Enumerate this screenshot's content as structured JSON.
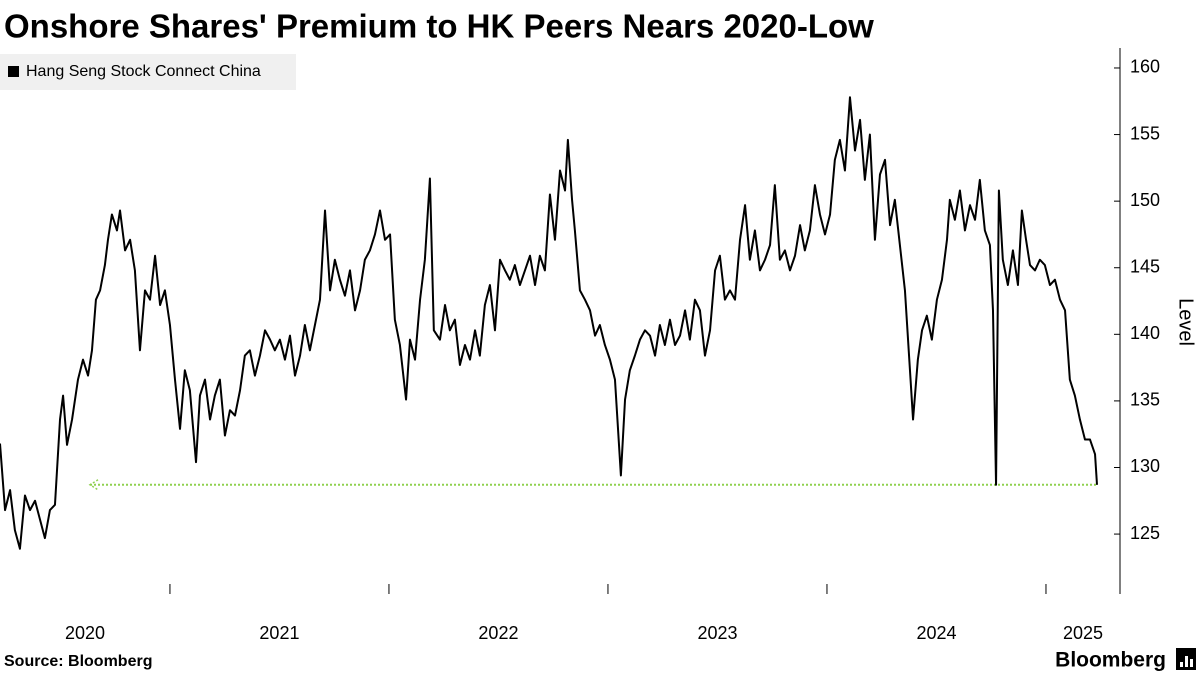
{
  "chart_data": {
    "type": "line",
    "title": "Onshore Shares' Premium to HK Peers Nears 2020-Low",
    "y_axis_label": "Level",
    "source": "Source: Bloomberg",
    "logo": "Bloomberg",
    "legend": "upper left",
    "ylim": [
      120.5,
      161.5
    ],
    "yticks": [
      125,
      130,
      135,
      140,
      145,
      150,
      155,
      160
    ],
    "xlim": [
      2020.224,
      2025.338
    ],
    "xticks": [
      2020,
      2021,
      2022,
      2023,
      2024,
      2025
    ],
    "reference_line": {
      "value": 128.7,
      "from": 2020.635,
      "to": 2025.233,
      "color": "#8fd14f"
    },
    "series": [
      {
        "name": "Hang Seng Stock Connect China",
        "color": "#000000",
        "x": [
          2020.224,
          2020.247,
          2020.27,
          2020.292,
          2020.315,
          2020.338,
          2020.361,
          2020.384,
          2020.429,
          2020.452,
          2020.475,
          2020.498,
          2020.512,
          2020.53,
          2020.553,
          2020.58,
          2020.603,
          2020.626,
          2020.644,
          2020.662,
          2020.681,
          2020.703,
          2020.717,
          2020.735,
          2020.758,
          2020.772,
          2020.795,
          2020.818,
          2020.84,
          2020.863,
          2020.886,
          2020.909,
          2020.932,
          2020.955,
          2020.977,
          2021.0,
          2021.023,
          2021.046,
          2021.068,
          2021.091,
          2021.119,
          2021.137,
          2021.16,
          2021.183,
          2021.205,
          2021.228,
          2021.251,
          2021.274,
          2021.297,
          2021.32,
          2021.342,
          2021.365,
          2021.388,
          2021.411,
          2021.434,
          2021.457,
          2021.479,
          2021.502,
          2021.525,
          2021.548,
          2021.571,
          2021.594,
          2021.616,
          2021.639,
          2021.662,
          2021.685,
          2021.708,
          2021.731,
          2021.753,
          2021.776,
          2021.799,
          2021.822,
          2021.845,
          2021.868,
          2021.89,
          2021.913,
          2021.936,
          2021.959,
          2021.982,
          2022.005,
          2022.027,
          2022.05,
          2022.078,
          2022.096,
          2022.119,
          2022.142,
          2022.164,
          2022.187,
          2022.205,
          2022.233,
          2022.256,
          2022.278,
          2022.301,
          2022.324,
          2022.347,
          2022.37,
          2022.393,
          2022.415,
          2022.438,
          2022.461,
          2022.484,
          2022.507,
          2022.53,
          2022.552,
          2022.575,
          2022.598,
          2022.621,
          2022.644,
          2022.667,
          2022.689,
          2022.712,
          2022.735,
          2022.758,
          2022.781,
          2022.804,
          2022.817,
          2022.836,
          2022.849,
          2022.872,
          2022.895,
          2022.918,
          2022.941,
          2022.963,
          2022.986,
          2023.009,
          2023.032,
          2023.059,
          2023.078,
          2023.1,
          2023.123,
          2023.146,
          2023.169,
          2023.192,
          2023.215,
          2023.237,
          2023.26,
          2023.283,
          2023.306,
          2023.329,
          2023.352,
          2023.374,
          2023.397,
          2023.42,
          2023.443,
          2023.466,
          2023.489,
          2023.511,
          2023.534,
          2023.557,
          2023.58,
          2023.603,
          2023.626,
          2023.648,
          2023.671,
          2023.694,
          2023.717,
          2023.74,
          2023.762,
          2023.785,
          2023.808,
          2023.831,
          2023.854,
          2023.877,
          2023.899,
          2023.922,
          2023.945,
          2023.968,
          2023.991,
          2024.014,
          2024.036,
          2024.059,
          2024.082,
          2024.105,
          2024.128,
          2024.151,
          2024.173,
          2024.196,
          2024.219,
          2024.242,
          2024.265,
          2024.288,
          2024.31,
          2024.333,
          2024.356,
          2024.379,
          2024.393,
          2024.415,
          2024.434,
          2024.456,
          2024.479,
          2024.502,
          2024.525,
          2024.548,
          2024.561,
          2024.584,
          2024.607,
          2024.63,
          2024.653,
          2024.676,
          2024.698,
          2024.721,
          2024.744,
          2024.758,
          2024.772,
          2024.785,
          2024.803,
          2024.826,
          2024.849,
          2024.872,
          2024.89,
          2024.909,
          2024.927,
          2024.95,
          2024.972,
          2024.995,
          2025.018,
          2025.041,
          2025.064,
          2025.087,
          2025.109,
          2025.132,
          2025.155,
          2025.178,
          2025.201,
          2025.224,
          2025.233
        ],
        "values": [
          131.8,
          126.8,
          128.3,
          125.3,
          123.9,
          127.9,
          126.8,
          127.5,
          124.7,
          126.8,
          127.2,
          133.6,
          135.4,
          131.7,
          133.6,
          136.6,
          138.1,
          136.9,
          138.8,
          142.6,
          143.3,
          145.2,
          147.1,
          149.0,
          147.8,
          149.3,
          146.3,
          147.1,
          144.8,
          138.8,
          143.3,
          142.6,
          145.9,
          142.2,
          143.3,
          140.7,
          136.6,
          132.9,
          137.3,
          135.8,
          130.4,
          135.4,
          136.6,
          133.6,
          135.4,
          136.6,
          132.4,
          134.3,
          133.9,
          135.8,
          138.4,
          138.8,
          136.9,
          138.4,
          140.3,
          139.6,
          138.8,
          139.6,
          138.1,
          139.9,
          136.9,
          138.4,
          140.7,
          138.8,
          140.7,
          142.6,
          149.3,
          143.3,
          145.6,
          144.1,
          142.9,
          144.8,
          141.8,
          143.3,
          145.6,
          146.3,
          147.5,
          149.3,
          147.1,
          147.5,
          141.1,
          139.2,
          135.1,
          139.6,
          138.1,
          142.6,
          145.6,
          151.7,
          140.3,
          139.6,
          142.2,
          140.3,
          141.1,
          137.7,
          139.2,
          138.1,
          140.3,
          138.4,
          142.2,
          143.7,
          140.3,
          145.6,
          144.8,
          144.1,
          145.2,
          143.7,
          144.8,
          145.9,
          143.7,
          145.9,
          144.8,
          150.5,
          147.1,
          152.3,
          150.8,
          154.6,
          150.1,
          147.8,
          143.3,
          142.6,
          141.8,
          139.9,
          140.7,
          139.2,
          138.1,
          136.6,
          129.4,
          135.1,
          137.3,
          138.4,
          139.6,
          140.3,
          139.9,
          138.4,
          140.7,
          139.2,
          141.1,
          139.2,
          139.9,
          141.8,
          139.6,
          142.6,
          141.8,
          138.4,
          140.3,
          144.8,
          145.9,
          142.6,
          143.3,
          142.6,
          147.1,
          149.7,
          145.6,
          147.8,
          144.8,
          145.6,
          146.7,
          151.2,
          145.6,
          146.3,
          144.8,
          145.9,
          148.2,
          146.3,
          147.8,
          151.2,
          149.0,
          147.5,
          149.0,
          153.1,
          154.6,
          152.3,
          157.8,
          153.8,
          156.1,
          151.6,
          155.0,
          147.1,
          152.0,
          153.1,
          148.2,
          150.1,
          146.7,
          143.3,
          137.3,
          133.6,
          138.1,
          140.3,
          141.4,
          139.6,
          142.6,
          144.1,
          147.1,
          150.1,
          148.6,
          150.8,
          147.8,
          149.7,
          148.6,
          151.6,
          147.8,
          146.7,
          141.8,
          128.7,
          150.8,
          145.6,
          143.7,
          146.3,
          143.7,
          149.3,
          147.1,
          145.2,
          144.8,
          145.6,
          145.2,
          143.7,
          144.1,
          142.6,
          141.8,
          136.6,
          135.4,
          133.6,
          132.1,
          132.1,
          131.0,
          128.7
        ]
      }
    ]
  }
}
